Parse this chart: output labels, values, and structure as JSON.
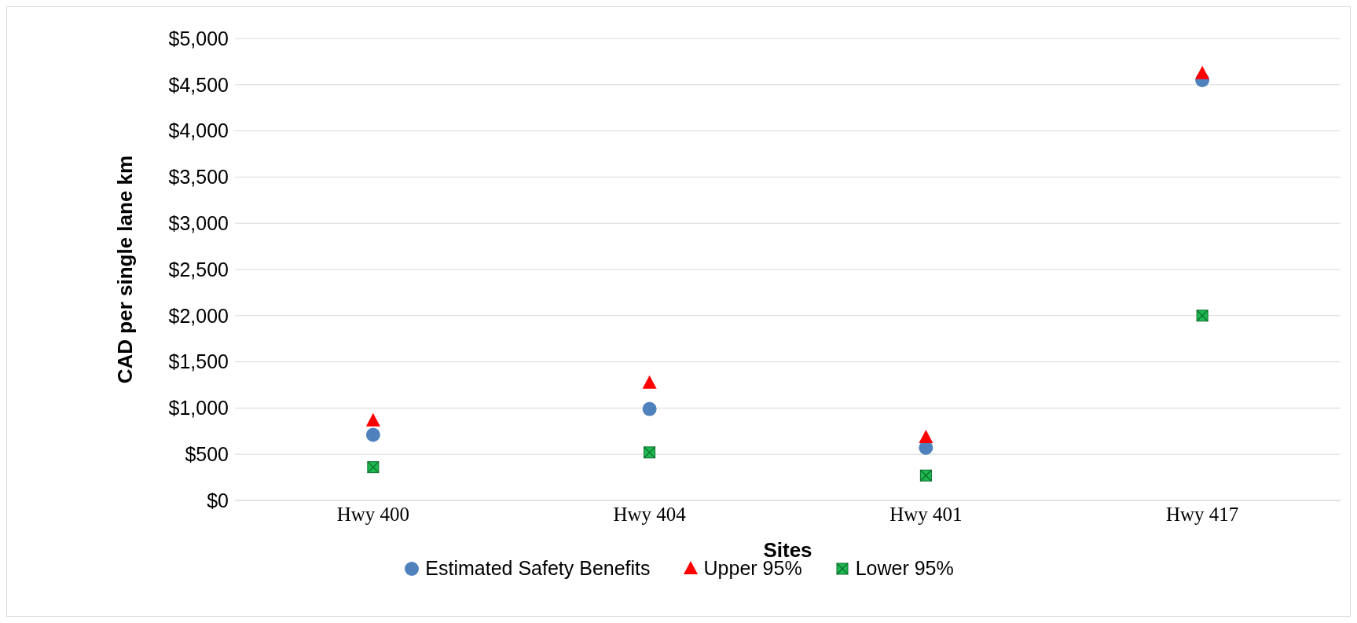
{
  "chart_data": {
    "type": "scatter",
    "xlabel": "Sites",
    "ylabel": "CAD per single lane km",
    "categories": [
      "Hwy 400",
      "Hwy 404",
      "Hwy 401",
      "Hwy 417"
    ],
    "series": [
      {
        "name": "Estimated Safety Benefits",
        "color": "#4f81bd",
        "marker": "circle",
        "values": [
          710,
          990,
          570,
          4550
        ]
      },
      {
        "name": "Upper 95%",
        "color": "#ff0000",
        "marker": "triangle",
        "values": [
          860,
          1270,
          680,
          4620
        ]
      },
      {
        "name": "Lower 95%",
        "color": "#1fb850",
        "marker": "square",
        "values": [
          360,
          520,
          270,
          2000
        ]
      }
    ],
    "ylim": [
      0,
      5000
    ],
    "yticks": [
      {
        "value": 0,
        "label": "$0"
      },
      {
        "value": 500,
        "label": "$500"
      },
      {
        "value": 1000,
        "label": "$1,000"
      },
      {
        "value": 1500,
        "label": "$1,500"
      },
      {
        "value": 2000,
        "label": "$2,000"
      },
      {
        "value": 2500,
        "label": "$2,500"
      },
      {
        "value": 3000,
        "label": "$3,000"
      },
      {
        "value": 3500,
        "label": "$3,500"
      },
      {
        "value": 4000,
        "label": "$4,000"
      },
      {
        "value": 4500,
        "label": "$4,500"
      },
      {
        "value": 5000,
        "label": "$5,000"
      }
    ],
    "grid": "y",
    "legend": "bottom"
  }
}
